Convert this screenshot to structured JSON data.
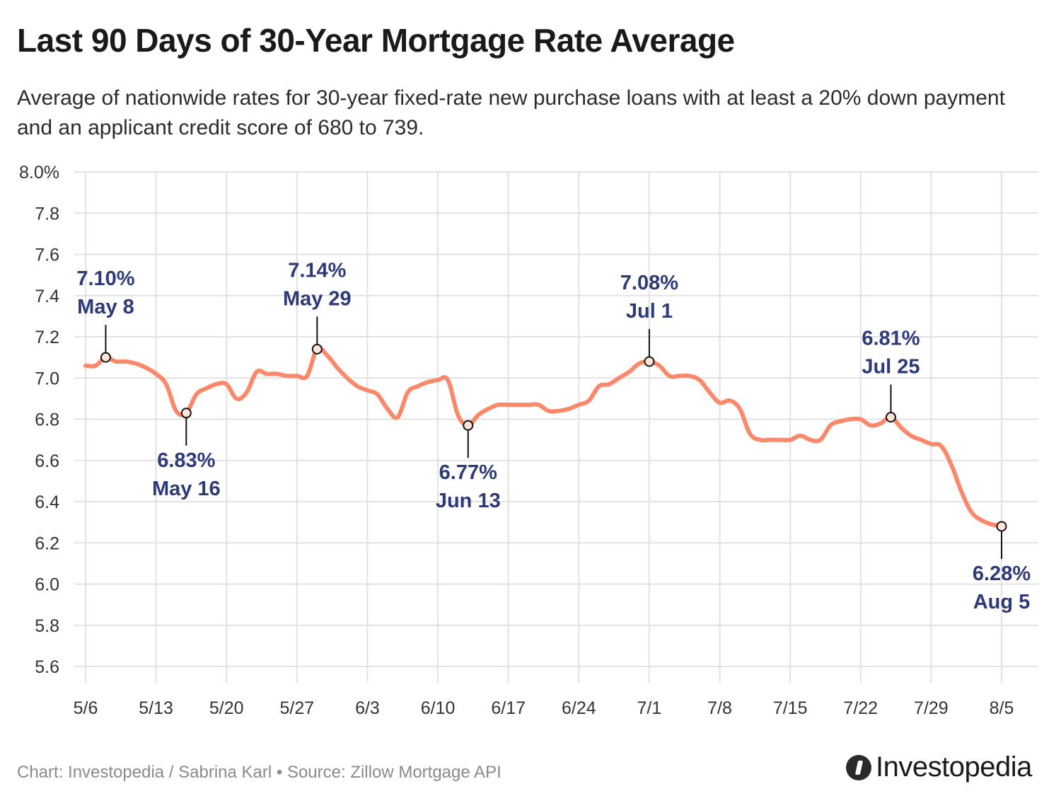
{
  "title": "Last 90 Days of 30-Year Mortgage Rate Average",
  "subtitle": "Average of nationwide rates for 30-year fixed-rate new purchase loans with at least a 20% down payment and an applicant credit score of 680 to 739.",
  "footer": "Chart: Investopedia / Sabrina Karl • Source: Zillow Mortgage API",
  "brand": {
    "name": "Investopedia"
  },
  "colors": {
    "line": "#f9896a",
    "annotation": "#2e3a78",
    "grid": "#e2e2e2"
  },
  "chart_data": {
    "type": "line",
    "title": "Last 90 Days of 30-Year Mortgage Rate Average",
    "xlabel": "",
    "ylabel": "",
    "ylim": [
      5.6,
      8.0
    ],
    "y_ticks": [
      5.6,
      5.8,
      6.0,
      6.2,
      6.4,
      6.6,
      6.8,
      7.0,
      7.2,
      7.4,
      7.6,
      7.8,
      8.0
    ],
    "y_tick_labels": [
      "5.6",
      "5.8",
      "6.0",
      "6.2",
      "6.4",
      "6.6",
      "6.8",
      "7.0",
      "7.2",
      "7.4",
      "7.6",
      "7.8",
      "8.0%"
    ],
    "x_range": [
      "2024-05-06",
      "2024-08-05"
    ],
    "x_ticks": [
      "2024-05-06",
      "2024-05-13",
      "2024-05-20",
      "2024-05-27",
      "2024-06-03",
      "2024-06-10",
      "2024-06-17",
      "2024-06-24",
      "2024-07-01",
      "2024-07-08",
      "2024-07-15",
      "2024-07-22",
      "2024-07-29",
      "2024-08-05"
    ],
    "x_tick_labels": [
      "5/6",
      "5/13",
      "5/20",
      "5/27",
      "6/3",
      "6/10",
      "6/17",
      "6/24",
      "7/1",
      "7/8",
      "7/15",
      "7/22",
      "7/29",
      "8/5"
    ],
    "grid": true,
    "legend": "none",
    "series": [
      {
        "points": [
          [
            "2024-05-06",
            7.06
          ],
          [
            "2024-05-07",
            7.06
          ],
          [
            "2024-05-08",
            7.1
          ],
          [
            "2024-05-09",
            7.08
          ],
          [
            "2024-05-10",
            7.08
          ],
          [
            "2024-05-11",
            7.07
          ],
          [
            "2024-05-12",
            7.05
          ],
          [
            "2024-05-13",
            7.02
          ],
          [
            "2024-05-14",
            6.97
          ],
          [
            "2024-05-15",
            6.84
          ],
          [
            "2024-05-16",
            6.83
          ],
          [
            "2024-05-17",
            6.92
          ],
          [
            "2024-05-18",
            6.95
          ],
          [
            "2024-05-19",
            6.97
          ],
          [
            "2024-05-20",
            6.97
          ],
          [
            "2024-05-21",
            6.9
          ],
          [
            "2024-05-22",
            6.93
          ],
          [
            "2024-05-23",
            7.03
          ],
          [
            "2024-05-24",
            7.02
          ],
          [
            "2024-05-25",
            7.02
          ],
          [
            "2024-05-26",
            7.01
          ],
          [
            "2024-05-27",
            7.01
          ],
          [
            "2024-05-28",
            7.01
          ],
          [
            "2024-05-29",
            7.14
          ],
          [
            "2024-05-30",
            7.11
          ],
          [
            "2024-05-31",
            7.05
          ],
          [
            "2024-06-01",
            7.0
          ],
          [
            "2024-06-02",
            6.96
          ],
          [
            "2024-06-03",
            6.94
          ],
          [
            "2024-06-04",
            6.92
          ],
          [
            "2024-06-05",
            6.85
          ],
          [
            "2024-06-06",
            6.81
          ],
          [
            "2024-06-07",
            6.93
          ],
          [
            "2024-06-08",
            6.96
          ],
          [
            "2024-06-09",
            6.98
          ],
          [
            "2024-06-10",
            6.99
          ],
          [
            "2024-06-11",
            6.99
          ],
          [
            "2024-06-12",
            6.82
          ],
          [
            "2024-06-13",
            6.77
          ],
          [
            "2024-06-14",
            6.82
          ],
          [
            "2024-06-15",
            6.85
          ],
          [
            "2024-06-16",
            6.87
          ],
          [
            "2024-06-17",
            6.87
          ],
          [
            "2024-06-18",
            6.87
          ],
          [
            "2024-06-19",
            6.87
          ],
          [
            "2024-06-20",
            6.87
          ],
          [
            "2024-06-21",
            6.84
          ],
          [
            "2024-06-22",
            6.84
          ],
          [
            "2024-06-23",
            6.85
          ],
          [
            "2024-06-24",
            6.87
          ],
          [
            "2024-06-25",
            6.89
          ],
          [
            "2024-06-26",
            6.96
          ],
          [
            "2024-06-27",
            6.97
          ],
          [
            "2024-06-28",
            7.0
          ],
          [
            "2024-06-29",
            7.03
          ],
          [
            "2024-06-30",
            7.07
          ],
          [
            "2024-07-01",
            7.08
          ],
          [
            "2024-07-02",
            7.06
          ],
          [
            "2024-07-03",
            7.01
          ],
          [
            "2024-07-04",
            7.01
          ],
          [
            "2024-07-05",
            7.01
          ],
          [
            "2024-07-06",
            6.99
          ],
          [
            "2024-07-07",
            6.93
          ],
          [
            "2024-07-08",
            6.88
          ],
          [
            "2024-07-09",
            6.89
          ],
          [
            "2024-07-10",
            6.85
          ],
          [
            "2024-07-11",
            6.73
          ],
          [
            "2024-07-12",
            6.7
          ],
          [
            "2024-07-13",
            6.7
          ],
          [
            "2024-07-14",
            6.7
          ],
          [
            "2024-07-15",
            6.7
          ],
          [
            "2024-07-16",
            6.72
          ],
          [
            "2024-07-17",
            6.7
          ],
          [
            "2024-07-18",
            6.7
          ],
          [
            "2024-07-19",
            6.77
          ],
          [
            "2024-07-20",
            6.79
          ],
          [
            "2024-07-21",
            6.8
          ],
          [
            "2024-07-22",
            6.8
          ],
          [
            "2024-07-23",
            6.77
          ],
          [
            "2024-07-24",
            6.78
          ],
          [
            "2024-07-25",
            6.81
          ],
          [
            "2024-07-26",
            6.76
          ],
          [
            "2024-07-27",
            6.72
          ],
          [
            "2024-07-28",
            6.7
          ],
          [
            "2024-07-29",
            6.68
          ],
          [
            "2024-07-30",
            6.67
          ],
          [
            "2024-07-31",
            6.58
          ],
          [
            "2024-08-01",
            6.45
          ],
          [
            "2024-08-02",
            6.35
          ],
          [
            "2024-08-03",
            6.31
          ],
          [
            "2024-08-04",
            6.29
          ],
          [
            "2024-08-05",
            6.28
          ]
        ]
      }
    ],
    "annotations": [
      {
        "date": "2024-05-08",
        "value": 7.1,
        "value_label": "7.10%",
        "date_label": "May 8",
        "position": "above"
      },
      {
        "date": "2024-05-16",
        "value": 6.83,
        "value_label": "6.83%",
        "date_label": "May 16",
        "position": "below"
      },
      {
        "date": "2024-05-29",
        "value": 7.14,
        "value_label": "7.14%",
        "date_label": "May 29",
        "position": "above"
      },
      {
        "date": "2024-06-13",
        "value": 6.77,
        "value_label": "6.77%",
        "date_label": "Jun 13",
        "position": "below"
      },
      {
        "date": "2024-07-01",
        "value": 7.08,
        "value_label": "7.08%",
        "date_label": "Jul 1",
        "position": "above"
      },
      {
        "date": "2024-07-25",
        "value": 6.81,
        "value_label": "6.81%",
        "date_label": "Jul 25",
        "position": "above"
      },
      {
        "date": "2024-08-05",
        "value": 6.28,
        "value_label": "6.28%",
        "date_label": "Aug 5",
        "position": "below"
      }
    ]
  }
}
